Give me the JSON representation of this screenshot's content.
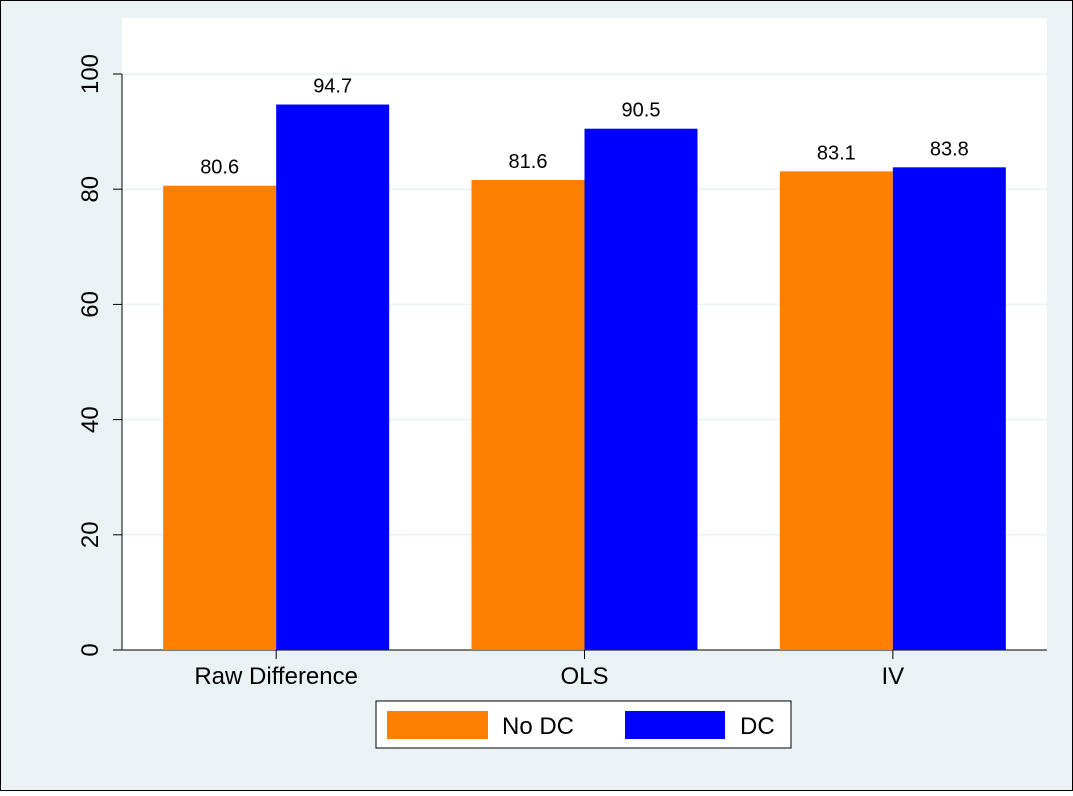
{
  "chart_data": {
    "type": "bar",
    "categories": [
      "Raw Difference",
      "OLS",
      "IV"
    ],
    "series": [
      {
        "name": "No DC",
        "values": [
          80.6,
          81.6,
          83.1
        ],
        "labels": [
          "80.6",
          "81.6",
          "83.1"
        ]
      },
      {
        "name": "DC",
        "values": [
          94.7,
          90.5,
          83.8
        ],
        "labels": [
          "94.7",
          "90.5",
          "83.8"
        ]
      }
    ],
    "yticks": [
      "0",
      "20",
      "40",
      "60",
      "80",
      "100"
    ],
    "ylim": [
      0,
      100
    ],
    "grid": true,
    "legend_position": "bottom",
    "title": "",
    "xlabel": "",
    "ylabel": ""
  },
  "colors": {
    "series": [
      "#ff7f00",
      "#0000ff"
    ],
    "outer_background": "#eaf2f3",
    "plot_background": "#ffffff",
    "grid": "#eaf2f3"
  }
}
